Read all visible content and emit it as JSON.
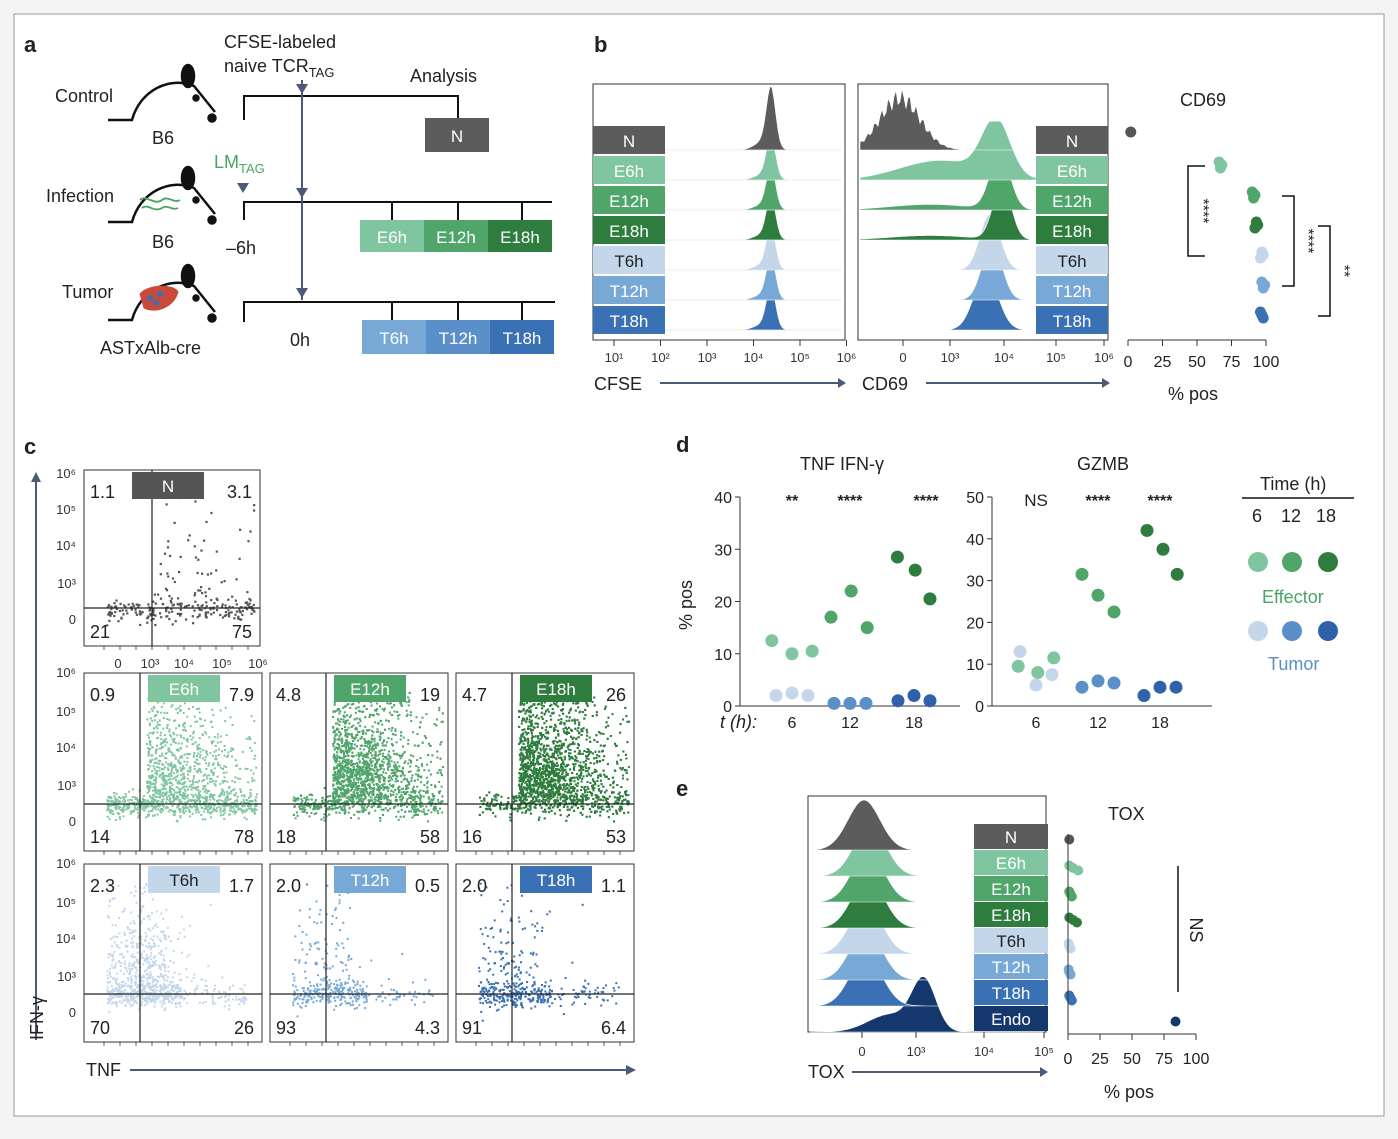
{
  "colors": {
    "N": "#5c5c5c",
    "E6h": "#7fc59f",
    "E12h": "#4fa56a",
    "E18h": "#2e7d3e",
    "T6h": "#c4d6ea",
    "T12h": "#78a9d6",
    "T18h": "#3a70b4",
    "Endo": "#14386e",
    "arrow": "#4a5a78",
    "lm_green": "#4aa363"
  },
  "panel_a": {
    "letter": "a",
    "cfse_label_line1": "CFSE-labeled",
    "cfse_label_line2": "naive TCR",
    "cfse_label_sub": "TAG",
    "analysis_label": "Analysis",
    "lm_label": "LM",
    "lm_sub": "TAG",
    "minus6h": "–6h",
    "zero_h": "0h",
    "rows": [
      {
        "name": "Control",
        "strain": "B6",
        "boxes": [
          "N"
        ]
      },
      {
        "name": "Infection",
        "strain": "B6",
        "boxes": [
          "E6h",
          "E12h",
          "E18h"
        ]
      },
      {
        "name": "Tumor",
        "strain": "ASTxAlb-cre",
        "boxes": [
          "T6h",
          "T12h",
          "T18h"
        ]
      }
    ]
  },
  "panel_b": {
    "letter": "b",
    "samples": [
      "N",
      "E6h",
      "E12h",
      "E18h",
      "T6h",
      "T12h",
      "T18h"
    ],
    "cfse_axis_label": "CFSE",
    "cd69_axis_label": "CD69",
    "cfse_ticks": [
      "10¹",
      "10²",
      "10³",
      "10⁴",
      "10⁵",
      "10⁶"
    ],
    "cd69_ticks": [
      "0",
      "10³",
      "10⁴",
      "10⁵",
      "10⁶"
    ],
    "dot_title": "CD69",
    "dot_xlabel": "% pos",
    "dot_ticks": [
      "0",
      "25",
      "50",
      "75",
      "100"
    ],
    "sig": [
      "****",
      "****",
      "**"
    ],
    "dot_values": {
      "N": [
        2
      ],
      "E6h": [
        66,
        68,
        67
      ],
      "E12h": [
        90,
        92,
        91
      ],
      "E18h": [
        93,
        94,
        92
      ],
      "T6h": [
        97,
        98,
        96
      ],
      "T12h": [
        97,
        99,
        98
      ],
      "T18h": [
        96,
        97,
        98
      ]
    }
  },
  "panel_c": {
    "letter": "c",
    "y_axis_label": "IFN-γ",
    "x_axis_label": "TNF",
    "y_ticks": [
      "10⁶",
      "10⁵",
      "10⁴",
      "10³",
      "0"
    ],
    "x_ticks": [
      "0",
      "10³",
      "10⁴",
      "10⁵",
      "10⁶"
    ],
    "plots": [
      {
        "label": "N",
        "ul": "1.1",
        "ur": "3.1",
        "ll": "21",
        "lr": "75"
      },
      {
        "label": "E6h",
        "ul": "0.9",
        "ur": "7.9",
        "ll": "14",
        "lr": "78"
      },
      {
        "label": "E12h",
        "ul": "4.8",
        "ur": "19",
        "ll": "18",
        "lr": "58"
      },
      {
        "label": "E18h",
        "ul": "4.7",
        "ur": "26",
        "ll": "16",
        "lr": "53"
      },
      {
        "label": "T6h",
        "ul": "2.3",
        "ur": "1.7",
        "ll": "70",
        "lr": "26"
      },
      {
        "label": "T12h",
        "ul": "2.0",
        "ur": "0.5",
        "ll": "93",
        "lr": "4.3"
      },
      {
        "label": "T18h",
        "ul": "2.0",
        "ur": "1.1",
        "ll": "91",
        "lr": "6.4"
      }
    ]
  },
  "panel_d": {
    "letter": "d",
    "ylabel": "% pos",
    "t_label": "t (h):",
    "legend_title": "Time (h)",
    "legend_times": [
      "6",
      "12",
      "18"
    ],
    "legend_effector": "Effector",
    "legend_tumor": "Tumor",
    "chart_data": [
      {
        "type": "scatter",
        "title": "TNF IFN-γ",
        "categories": [
          "6",
          "12",
          "18"
        ],
        "ylim": [
          0,
          40
        ],
        "yticks": [
          "0",
          "10",
          "20",
          "30",
          "40"
        ],
        "significance": [
          "**",
          "****",
          "****"
        ],
        "series": [
          {
            "name": "Effector",
            "values": [
              [
                12.5,
                10,
                10.5
              ],
              [
                17,
                22,
                15
              ],
              [
                28.5,
                26,
                20.5
              ]
            ]
          },
          {
            "name": "Tumor",
            "values": [
              [
                2,
                2.5,
                2
              ],
              [
                0.5,
                0.5,
                0.5
              ],
              [
                1,
                2,
                1
              ]
            ]
          }
        ]
      },
      {
        "type": "scatter",
        "title": "GZMB",
        "categories": [
          "6",
          "12",
          "18"
        ],
        "ylim": [
          0,
          50
        ],
        "yticks": [
          "0",
          "10",
          "20",
          "30",
          "40",
          "50"
        ],
        "significance": [
          "NS",
          "****",
          "****"
        ],
        "series": [
          {
            "name": "Effector",
            "values": [
              [
                9.5,
                8,
                11.5
              ],
              [
                31.5,
                26.5,
                22.5
              ],
              [
                42,
                37.5,
                31.5
              ]
            ]
          },
          {
            "name": "Tumor",
            "values": [
              [
                13,
                5,
                7.5
              ],
              [
                4.5,
                6,
                5.5
              ],
              [
                2.5,
                4.5,
                4.5
              ]
            ]
          }
        ]
      }
    ]
  },
  "panel_e": {
    "letter": "e",
    "samples": [
      "N",
      "E6h",
      "E12h",
      "E18h",
      "T6h",
      "T12h",
      "T18h",
      "Endo"
    ],
    "axis_label": "TOX",
    "ticks": [
      "0",
      "10³",
      "10⁴",
      "10⁵"
    ],
    "dot_title": "TOX",
    "dot_xlabel": "% pos",
    "dot_ticks": [
      "0",
      "25",
      "50",
      "75",
      "100"
    ],
    "sig": "NS",
    "dot_values": {
      "N": [
        1
      ],
      "E6h": [
        1,
        4,
        8
      ],
      "E12h": [
        1,
        2,
        3
      ],
      "E18h": [
        1,
        4,
        7
      ],
      "T6h": [
        0.5,
        1,
        2
      ],
      "T12h": [
        0.5,
        1,
        2
      ],
      "T18h": [
        1,
        2,
        3
      ],
      "Endo": [
        84
      ]
    }
  }
}
